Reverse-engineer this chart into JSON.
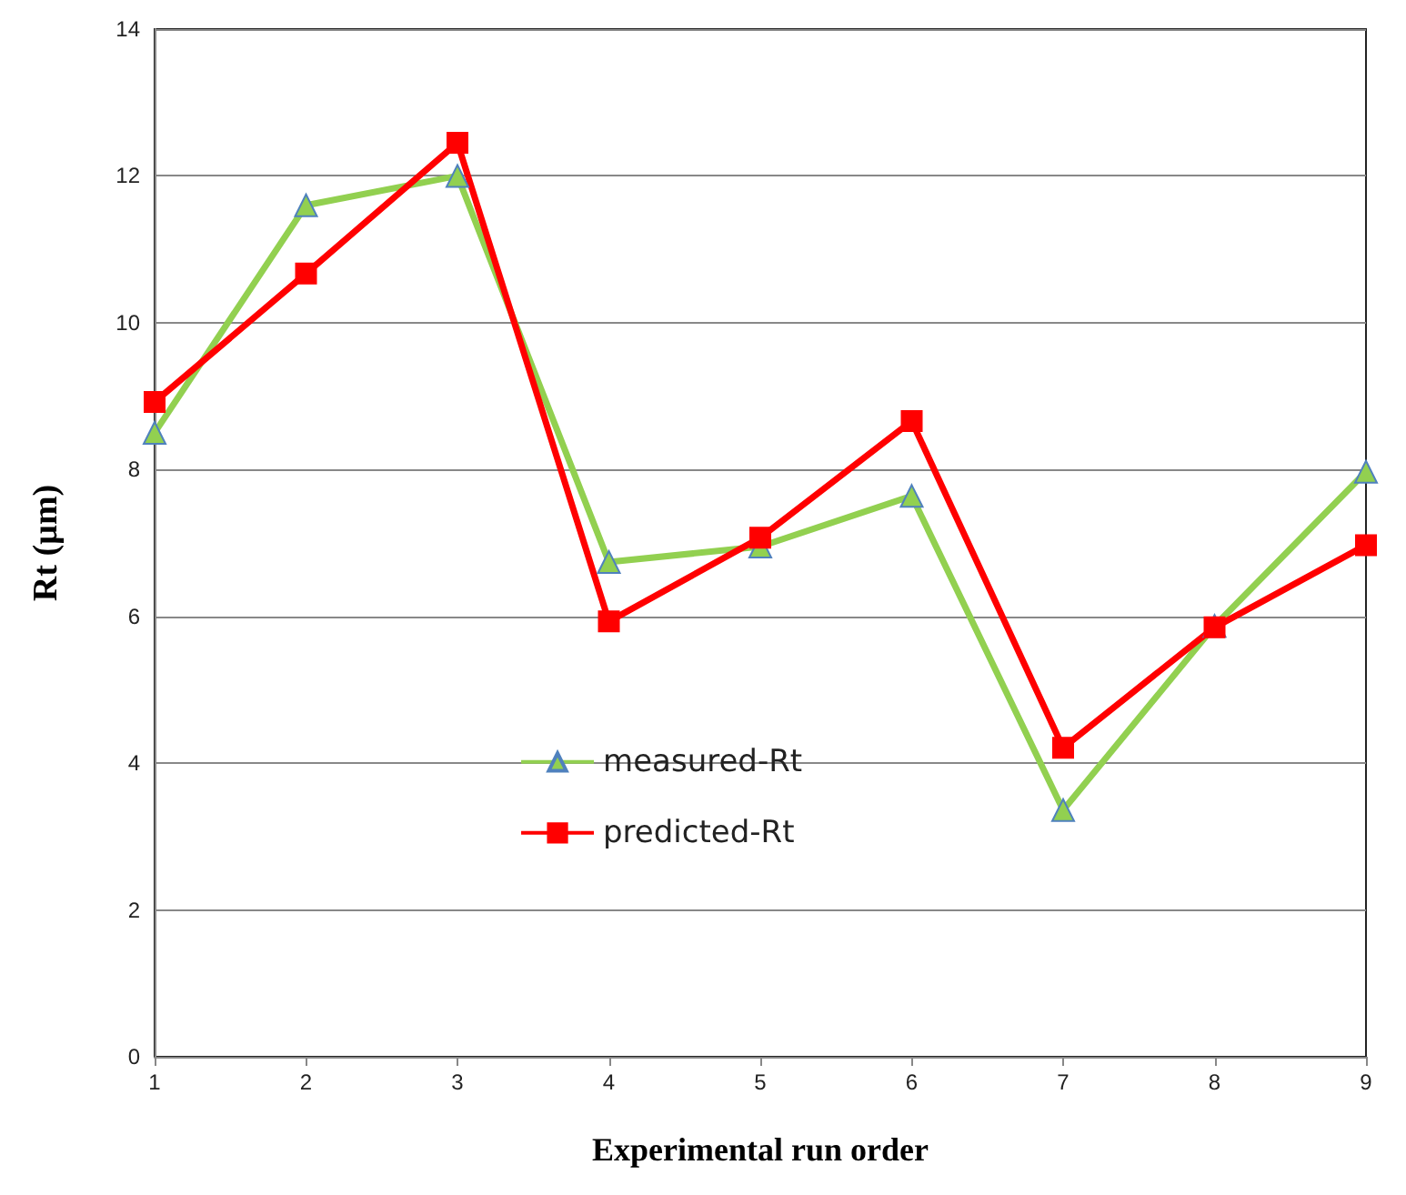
{
  "chart_data": {
    "type": "line",
    "xlabel": "Experimental run order",
    "ylabel": "Rt (µm)",
    "categories": [
      "1",
      "2",
      "3",
      "4",
      "5",
      "6",
      "7",
      "8",
      "9"
    ],
    "series": [
      {
        "name": "measured-Rt",
        "color": "#92d050",
        "marker": "triangle",
        "values": [
          8.5,
          11.6,
          12.0,
          6.74,
          6.95,
          7.64,
          3.36,
          5.87,
          7.97
        ]
      },
      {
        "name": "predicted-Rt",
        "color": "#ff0000",
        "marker": "square",
        "values": [
          8.92,
          10.67,
          12.45,
          5.93,
          7.07,
          8.66,
          4.21,
          5.85,
          6.97
        ]
      }
    ],
    "ylim": [
      0,
      14
    ],
    "yticks": [
      0,
      2,
      4,
      6,
      8,
      10,
      12,
      14
    ],
    "grid": "y",
    "legend": "bottom",
    "line_style": "solid"
  }
}
